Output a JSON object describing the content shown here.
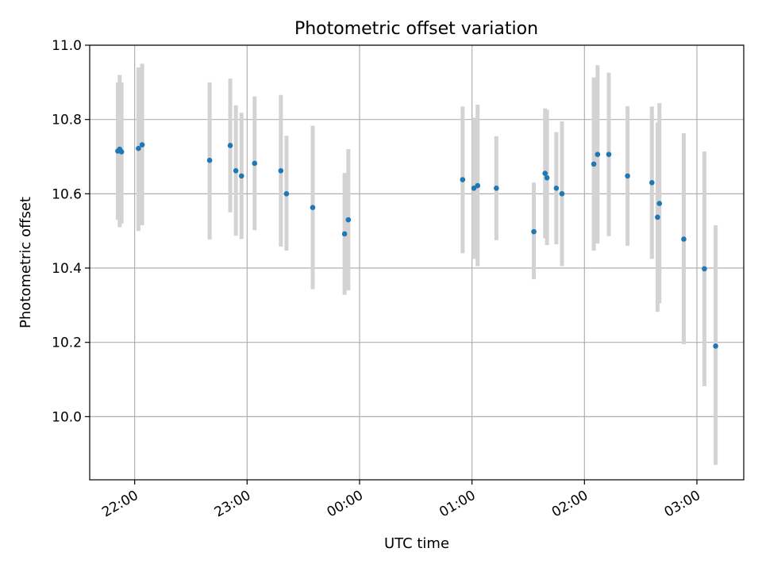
{
  "chart_data": {
    "type": "scatter",
    "title": "Photometric offset variation",
    "xlabel": "UTC time",
    "ylabel": "Photometric offset",
    "x_unit": "minutes",
    "xlim": [
      -1320,
      -2985
    ],
    "ylim": [
      9.83,
      11.0
    ],
    "xlim_label": [
      "21:36",
      "03:25"
    ],
    "x_ticks": [
      {
        "label": "22:00",
        "value": "22:00"
      },
      {
        "label": "23:00",
        "value": "23:00"
      },
      {
        "label": "00:00",
        "value": "00:00"
      },
      {
        "label": "01:00",
        "value": "01:00"
      },
      {
        "label": "02:00",
        "value": "02:00"
      },
      {
        "label": "03:00",
        "value": "03:00"
      }
    ],
    "y_ticks": [
      {
        "label": "10.0",
        "value": 10.0
      },
      {
        "label": "10.2",
        "value": 10.2
      },
      {
        "label": "10.4",
        "value": 10.4
      },
      {
        "label": "10.6",
        "value": 10.6
      },
      {
        "label": "10.8",
        "value": 10.8
      },
      {
        "label": "11.0",
        "value": 11.0
      }
    ],
    "grid": true,
    "colors": {
      "point": "#1f77b4",
      "errorbar": "#d3d3d3",
      "grid": "#b0b0b0",
      "axis": "#000000"
    },
    "series": [
      {
        "points": [
          {
            "t": "21:51",
            "y": 10.715,
            "lo": 10.53,
            "hi": 10.9
          },
          {
            "t": "21:52",
            "y": 10.72,
            "lo": 10.51,
            "hi": 10.92
          },
          {
            "t": "21:53",
            "y": 10.713,
            "lo": 10.52,
            "hi": 10.9
          },
          {
            "t": "22:02",
            "y": 10.722,
            "lo": 10.5,
            "hi": 10.94
          },
          {
            "t": "22:04",
            "y": 10.732,
            "lo": 10.515,
            "hi": 10.95
          },
          {
            "t": "22:40",
            "y": 10.69,
            "lo": 10.477,
            "hi": 10.9
          },
          {
            "t": "22:51",
            "y": 10.73,
            "lo": 10.55,
            "hi": 10.91
          },
          {
            "t": "22:54",
            "y": 10.662,
            "lo": 10.487,
            "hi": 10.838
          },
          {
            "t": "22:57",
            "y": 10.648,
            "lo": 10.478,
            "hi": 10.818
          },
          {
            "t": "23:04",
            "y": 10.682,
            "lo": 10.502,
            "hi": 10.862
          },
          {
            "t": "23:18",
            "y": 10.662,
            "lo": 10.458,
            "hi": 10.866
          },
          {
            "t": "23:21",
            "y": 10.6,
            "lo": 10.447,
            "hi": 10.756
          },
          {
            "t": "23:35",
            "y": 10.563,
            "lo": 10.343,
            "hi": 10.783
          },
          {
            "t": "23:52",
            "y": 10.492,
            "lo": 10.328,
            "hi": 10.656
          },
          {
            "t": "23:54",
            "y": 10.53,
            "lo": 10.34,
            "hi": 10.72
          },
          {
            "t": "00:55",
            "y": 10.638,
            "lo": 10.44,
            "hi": 10.835
          },
          {
            "t": "01:01",
            "y": 10.615,
            "lo": 10.425,
            "hi": 10.805
          },
          {
            "t": "01:03",
            "y": 10.622,
            "lo": 10.405,
            "hi": 10.84
          },
          {
            "t": "01:13",
            "y": 10.615,
            "lo": 10.475,
            "hi": 10.755
          },
          {
            "t": "01:33",
            "y": 10.498,
            "lo": 10.37,
            "hi": 10.63
          },
          {
            "t": "01:39",
            "y": 10.655,
            "lo": 10.48,
            "hi": 10.83
          },
          {
            "t": "01:40",
            "y": 10.643,
            "lo": 10.462,
            "hi": 10.826
          },
          {
            "t": "01:45",
            "y": 10.615,
            "lo": 10.464,
            "hi": 10.766
          },
          {
            "t": "01:48",
            "y": 10.6,
            "lo": 10.405,
            "hi": 10.795
          },
          {
            "t": "02:05",
            "y": 10.68,
            "lo": 10.447,
            "hi": 10.913
          },
          {
            "t": "02:07",
            "y": 10.706,
            "lo": 10.466,
            "hi": 10.946
          },
          {
            "t": "02:13",
            "y": 10.706,
            "lo": 10.486,
            "hi": 10.926
          },
          {
            "t": "02:23",
            "y": 10.648,
            "lo": 10.46,
            "hi": 10.836
          },
          {
            "t": "02:36",
            "y": 10.63,
            "lo": 10.425,
            "hi": 10.835
          },
          {
            "t": "02:39",
            "y": 10.537,
            "lo": 10.282,
            "hi": 10.792
          },
          {
            "t": "02:40",
            "y": 10.574,
            "lo": 10.305,
            "hi": 10.844
          },
          {
            "t": "02:53",
            "y": 10.478,
            "lo": 10.195,
            "hi": 10.763
          },
          {
            "t": "03:04",
            "y": 10.398,
            "lo": 10.082,
            "hi": 10.714
          },
          {
            "t": "03:10",
            "y": 10.19,
            "lo": 9.87,
            "hi": 10.515
          }
        ]
      }
    ]
  }
}
